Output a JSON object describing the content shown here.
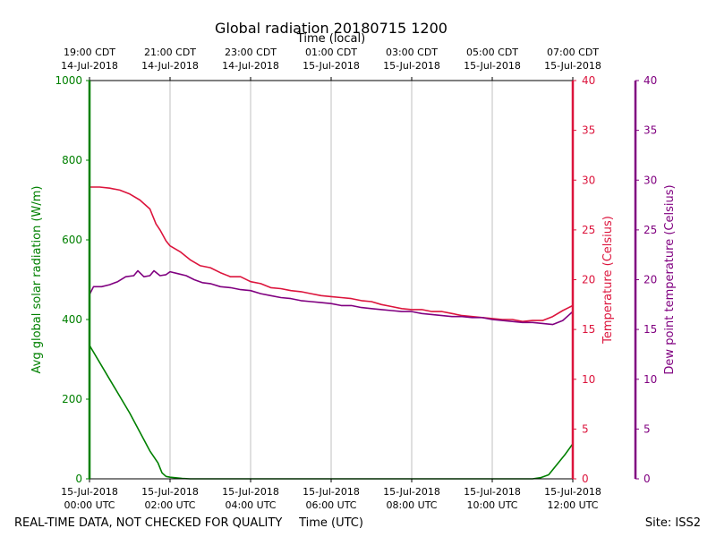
{
  "chart_data": {
    "type": "line",
    "title": "Global radiation 20180715 1200",
    "xlabel_bottom": "Time (UTC)",
    "xlabel_top": "Time (local)",
    "footer_left": "REAL-TIME DATA, NOT CHECKED FOR QUALITY",
    "footer_right": "Site: ISS2",
    "x_range_hours": [
      0,
      12
    ],
    "grid": "vertical",
    "bottom_ticks": [
      {
        "hour": 0,
        "line1": "15-Jul-2018",
        "line2": "00:00 UTC"
      },
      {
        "hour": 2,
        "line1": "15-Jul-2018",
        "line2": "02:00 UTC"
      },
      {
        "hour": 4,
        "line1": "15-Jul-2018",
        "line2": "04:00 UTC"
      },
      {
        "hour": 6,
        "line1": "15-Jul-2018",
        "line2": "06:00 UTC"
      },
      {
        "hour": 8,
        "line1": "15-Jul-2018",
        "line2": "08:00 UTC"
      },
      {
        "hour": 10,
        "line1": "15-Jul-2018",
        "line2": "10:00 UTC"
      },
      {
        "hour": 12,
        "line1": "15-Jul-2018",
        "line2": "12:00 UTC"
      }
    ],
    "top_ticks": [
      {
        "hour": 0,
        "line1": "19:00 CDT",
        "line2": "14-Jul-2018"
      },
      {
        "hour": 2,
        "line1": "21:00 CDT",
        "line2": "14-Jul-2018"
      },
      {
        "hour": 4,
        "line1": "23:00 CDT",
        "line2": "14-Jul-2018"
      },
      {
        "hour": 6,
        "line1": "01:00 CDT",
        "line2": "15-Jul-2018"
      },
      {
        "hour": 8,
        "line1": "03:00 CDT",
        "line2": "15-Jul-2018"
      },
      {
        "hour": 10,
        "line1": "05:00 CDT",
        "line2": "15-Jul-2018"
      },
      {
        "hour": 12,
        "line1": "07:00 CDT",
        "line2": "15-Jul-2018"
      }
    ],
    "axes": {
      "left": {
        "label": "Avg global solar radiation (W/m)",
        "ylim": [
          0,
          1000
        ],
        "ticks": [
          0,
          200,
          400,
          600,
          800,
          1000
        ],
        "color": "#008000"
      },
      "right": {
        "label": "Temperature (Celsius)",
        "ylim": [
          0,
          40
        ],
        "ticks": [
          0,
          5,
          10,
          15,
          20,
          25,
          30,
          35,
          40
        ],
        "color": "#dc143c"
      },
      "right2": {
        "label": "Dew point temperature (Celsius)",
        "ylim": [
          0,
          40
        ],
        "ticks": [
          0,
          5,
          10,
          15,
          20,
          25,
          30,
          35,
          40
        ],
        "color": "#800080"
      }
    },
    "series": [
      {
        "key": "radiation",
        "axis": "left",
        "color": "#008000",
        "x": [
          0,
          0.5,
          1.0,
          1.5,
          1.7,
          1.8,
          1.9,
          2.0,
          2.3,
          2.5,
          3,
          4,
          5,
          6,
          7,
          8,
          9,
          10,
          11,
          11.2,
          11.4,
          11.6,
          11.8,
          12.0
        ],
        "y": [
          335,
          250,
          165,
          70,
          40,
          15,
          6,
          4,
          1,
          0,
          0,
          0,
          0,
          0,
          0,
          0,
          0,
          0,
          0,
          3,
          10,
          35,
          60,
          88
        ]
      },
      {
        "key": "temperature",
        "axis": "right",
        "color": "#dc143c",
        "x": [
          0,
          0.25,
          0.5,
          0.75,
          1.0,
          1.25,
          1.5,
          1.65,
          1.75,
          1.9,
          2.0,
          2.25,
          2.5,
          2.75,
          3.0,
          3.25,
          3.5,
          3.75,
          4.0,
          4.25,
          4.5,
          4.75,
          5.0,
          5.25,
          5.5,
          5.75,
          6.0,
          6.25,
          6.5,
          6.75,
          7.0,
          7.25,
          7.5,
          7.75,
          8.0,
          8.25,
          8.5,
          8.75,
          9.0,
          9.25,
          9.5,
          9.75,
          10.0,
          10.25,
          10.5,
          10.75,
          11.0,
          11.25,
          11.5,
          11.75,
          12.0
        ],
        "y": [
          29.3,
          29.3,
          29.2,
          29.0,
          28.6,
          28.0,
          27.1,
          25.6,
          25.0,
          23.9,
          23.4,
          22.8,
          22.0,
          21.4,
          21.2,
          20.7,
          20.3,
          20.3,
          19.8,
          19.6,
          19.2,
          19.1,
          18.9,
          18.8,
          18.6,
          18.4,
          18.3,
          18.2,
          18.1,
          17.9,
          17.8,
          17.5,
          17.3,
          17.1,
          17.0,
          17.0,
          16.8,
          16.8,
          16.6,
          16.4,
          16.3,
          16.2,
          16.1,
          16.0,
          16.0,
          15.8,
          15.9,
          15.9,
          16.3,
          16.9,
          17.4
        ]
      },
      {
        "key": "dewpoint",
        "axis": "right2",
        "color": "#800080",
        "x": [
          0,
          0.1,
          0.3,
          0.5,
          0.7,
          0.9,
          1.1,
          1.2,
          1.35,
          1.5,
          1.6,
          1.75,
          1.9,
          2.0,
          2.2,
          2.4,
          2.6,
          2.8,
          3.0,
          3.25,
          3.5,
          3.75,
          4.0,
          4.25,
          4.5,
          4.75,
          5.0,
          5.25,
          5.5,
          5.75,
          6.0,
          6.25,
          6.5,
          6.75,
          7.0,
          7.25,
          7.5,
          7.75,
          8.0,
          8.25,
          8.5,
          8.75,
          9.0,
          9.25,
          9.5,
          9.75,
          10.0,
          10.25,
          10.5,
          10.75,
          11.0,
          11.25,
          11.5,
          11.75,
          12.0
        ],
        "y": [
          18.5,
          19.3,
          19.3,
          19.5,
          19.8,
          20.3,
          20.4,
          20.9,
          20.3,
          20.4,
          20.9,
          20.4,
          20.5,
          20.8,
          20.6,
          20.4,
          20.0,
          19.7,
          19.6,
          19.3,
          19.2,
          19.0,
          18.9,
          18.6,
          18.4,
          18.2,
          18.1,
          17.9,
          17.8,
          17.7,
          17.6,
          17.4,
          17.4,
          17.2,
          17.1,
          17.0,
          16.9,
          16.8,
          16.8,
          16.6,
          16.5,
          16.4,
          16.3,
          16.3,
          16.2,
          16.2,
          16.0,
          15.9,
          15.8,
          15.7,
          15.7,
          15.6,
          15.5,
          15.9,
          16.8
        ]
      }
    ]
  }
}
